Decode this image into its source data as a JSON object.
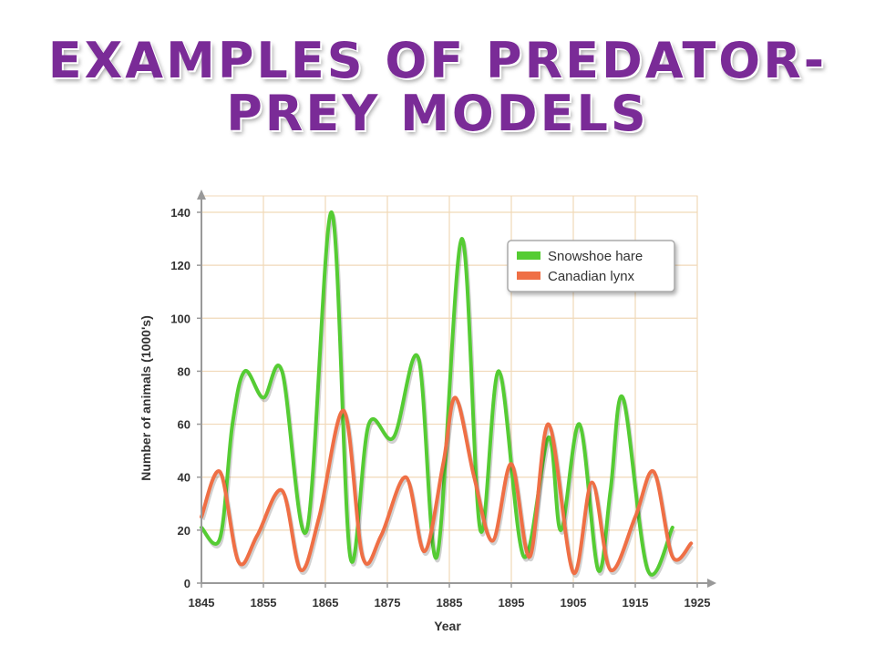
{
  "slide": {
    "title_line1": "EXAMPLES OF PREDATOR-",
    "title_line2": "PREY MODELS"
  },
  "colors": {
    "title": "#7a2b97",
    "hare": "#55cc33",
    "lynx": "#ef6f45",
    "grid": "#f1d9b8"
  },
  "chart_data": {
    "type": "line",
    "title": "",
    "xlabel": "Year",
    "ylabel": "Number of animals (1000's)",
    "xlim": [
      1845,
      1925
    ],
    "ylim": [
      0,
      140
    ],
    "xticks": [
      1845,
      1855,
      1865,
      1875,
      1885,
      1895,
      1905,
      1915,
      1925
    ],
    "yticks": [
      0,
      20,
      40,
      60,
      80,
      100,
      120,
      140
    ],
    "grid": true,
    "legend_position": "top-right",
    "series": [
      {
        "name": "Snowshoe hare",
        "color": "#55cc33",
        "x": [
          1845,
          1848,
          1850,
          1852,
          1855,
          1858,
          1862,
          1866,
          1869,
          1872,
          1876,
          1880,
          1883,
          1887,
          1890,
          1893,
          1897,
          1901,
          1903,
          1906,
          1909,
          1911,
          1913,
          1917,
          1921
        ],
        "y": [
          21,
          17,
          60,
          80,
          70,
          80,
          20,
          140,
          10,
          60,
          55,
          85,
          10,
          130,
          20,
          80,
          10,
          55,
          20,
          60,
          5,
          35,
          70,
          5,
          21
        ]
      },
      {
        "name": "Canadian lynx",
        "color": "#ef6f45",
        "x": [
          1845,
          1848,
          1851,
          1854,
          1858,
          1861,
          1864,
          1868,
          1871,
          1874,
          1878,
          1881,
          1884,
          1886,
          1889,
          1892,
          1895,
          1898,
          1901,
          1905,
          1908,
          1911,
          1915,
          1918,
          1921,
          1924
        ],
        "y": [
          25,
          42,
          8,
          18,
          35,
          5,
          25,
          65,
          10,
          18,
          40,
          12,
          45,
          70,
          40,
          16,
          45,
          10,
          60,
          4,
          38,
          5,
          25,
          42,
          10,
          15
        ]
      }
    ]
  }
}
